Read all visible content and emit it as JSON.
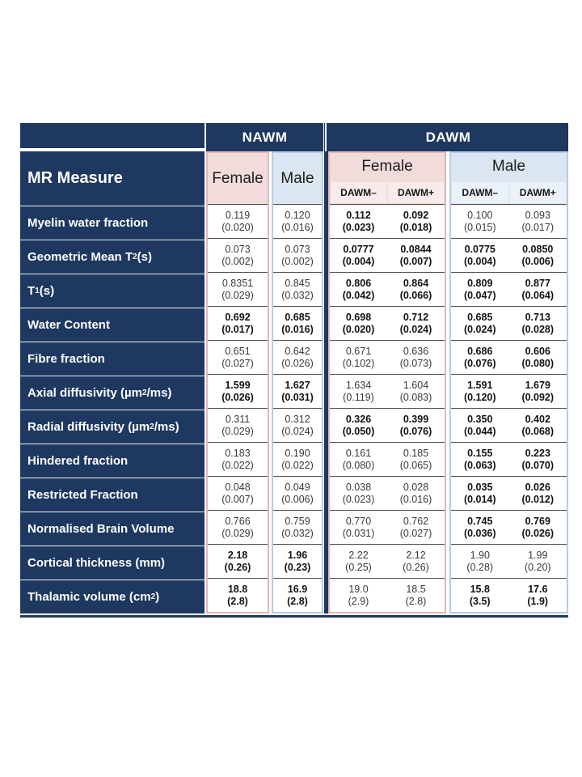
{
  "table": {
    "corner_label": "MR Measure",
    "groups": {
      "nawm": "NAWM",
      "dawm": "DAWM"
    },
    "sex_labels": {
      "female": "Female",
      "male": "Male"
    },
    "subcols": {
      "neg": "DAWM–",
      "pos": "DAWM+"
    },
    "colors": {
      "navy": "#1F3860",
      "female_fill": "#F2DCDB",
      "female_border": "#E3B7B5",
      "female_subfill": "#F8EBEA",
      "male_fill": "#DCE6F2",
      "male_border": "#B7CCE2",
      "male_subfill": "#EAF1F8",
      "row_separator": "#4d4d4d"
    },
    "column_order": [
      "nawm_female",
      "nawm_male",
      "dawm_female_neg",
      "dawm_female_pos",
      "dawm_male_neg",
      "dawm_male_pos"
    ],
    "rows": [
      {
        "label_parts": [
          {
            "t": "Myelin water fraction"
          }
        ],
        "cells": [
          {
            "v": "0.119",
            "sd": "(0.020)",
            "b": false
          },
          {
            "v": "0.120",
            "sd": "(0.016)",
            "b": false
          },
          {
            "v": "0.112",
            "sd": "(0.023)",
            "b": true
          },
          {
            "v": "0.092",
            "sd": "(0.018)",
            "b": true
          },
          {
            "v": "0.100",
            "sd": "(0.015)",
            "b": false
          },
          {
            "v": "0.093",
            "sd": "(0.017)",
            "b": false
          }
        ]
      },
      {
        "label_parts": [
          {
            "t": "Geometric Mean T"
          },
          {
            "sub": "2"
          },
          {
            "t": " (s)"
          }
        ],
        "cells": [
          {
            "v": "0.073",
            "sd": "(0.002)",
            "b": false
          },
          {
            "v": "0.073",
            "sd": "(0.002)",
            "b": false
          },
          {
            "v": "0.0777",
            "sd": "(0.004)",
            "b": true
          },
          {
            "v": "0.0844",
            "sd": "(0.007)",
            "b": true
          },
          {
            "v": "0.0775",
            "sd": "(0.004)",
            "b": true
          },
          {
            "v": "0.0850",
            "sd": "(0.006)",
            "b": true
          }
        ]
      },
      {
        "label_parts": [
          {
            "t": "T"
          },
          {
            "sub": "1"
          },
          {
            "t": " (s)"
          }
        ],
        "cells": [
          {
            "v": "0.8351",
            "sd": "(0.029)",
            "b": false
          },
          {
            "v": "0.845",
            "sd": "(0.032)",
            "b": false
          },
          {
            "v": "0.806",
            "sd": "(0.042)",
            "b": true
          },
          {
            "v": "0.864",
            "sd": "(0.066)",
            "b": true
          },
          {
            "v": "0.809",
            "sd": "(0.047)",
            "b": true
          },
          {
            "v": "0.877",
            "sd": "(0.064)",
            "b": true
          }
        ]
      },
      {
        "label_parts": [
          {
            "t": "Water Content"
          }
        ],
        "cells": [
          {
            "v": "0.692",
            "sd": "(0.017)",
            "b": true
          },
          {
            "v": "0.685",
            "sd": "(0.016)",
            "b": true
          },
          {
            "v": "0.698",
            "sd": "(0.020)",
            "b": true
          },
          {
            "v": "0.712",
            "sd": "(0.024)",
            "b": true
          },
          {
            "v": "0.685",
            "sd": "(0.024)",
            "b": true
          },
          {
            "v": "0.713",
            "sd": "(0.028)",
            "b": true
          }
        ]
      },
      {
        "label_parts": [
          {
            "t": "Fibre fraction"
          }
        ],
        "cells": [
          {
            "v": "0.651",
            "sd": "(0.027)",
            "b": false
          },
          {
            "v": "0.642",
            "sd": "(0.026)",
            "b": false
          },
          {
            "v": "0.671",
            "sd": "(0.102)",
            "b": false
          },
          {
            "v": "0.636",
            "sd": "(0.073)",
            "b": false
          },
          {
            "v": "0.686",
            "sd": "(0.076)",
            "b": true
          },
          {
            "v": "0.606",
            "sd": "(0.080)",
            "b": true
          }
        ]
      },
      {
        "label_parts": [
          {
            "t": "Axial diffusivity (µm"
          },
          {
            "sup": "2"
          },
          {
            "t": "/ms)"
          }
        ],
        "cells": [
          {
            "v": "1.599",
            "sd": "(0.026)",
            "b": true
          },
          {
            "v": "1.627",
            "sd": "(0.031)",
            "b": true
          },
          {
            "v": "1.634",
            "sd": "(0.119)",
            "b": false
          },
          {
            "v": "1.604",
            "sd": "(0.083)",
            "b": false
          },
          {
            "v": "1.591",
            "sd": "(0.120)",
            "b": true
          },
          {
            "v": "1.679",
            "sd": "(0.092)",
            "b": true
          }
        ]
      },
      {
        "label_parts": [
          {
            "t": "Radial diffusivity (µm"
          },
          {
            "sup": "2"
          },
          {
            "t": "/ms)"
          }
        ],
        "cells": [
          {
            "v": "0.311",
            "sd": "(0.029)",
            "b": false
          },
          {
            "v": "0.312",
            "sd": "(0.024)",
            "b": false
          },
          {
            "v": "0.326",
            "sd": "(0.050)",
            "b": true
          },
          {
            "v": "0.399",
            "sd": "(0.076)",
            "b": true
          },
          {
            "v": "0.350",
            "sd": "(0.044)",
            "b": true
          },
          {
            "v": "0.402",
            "sd": "(0.068)",
            "b": true
          }
        ]
      },
      {
        "label_parts": [
          {
            "t": "Hindered fraction"
          }
        ],
        "cells": [
          {
            "v": "0.183",
            "sd": "(0.022)",
            "b": false
          },
          {
            "v": "0.190",
            "sd": "(0.022)",
            "b": false
          },
          {
            "v": "0.161",
            "sd": "(0.080)",
            "b": false
          },
          {
            "v": "0.185",
            "sd": "(0.065)",
            "b": false
          },
          {
            "v": "0.155",
            "sd": "(0.063)",
            "b": true
          },
          {
            "v": "0.223",
            "sd": "(0.070)",
            "b": true
          }
        ]
      },
      {
        "label_parts": [
          {
            "t": "Restricted Fraction"
          }
        ],
        "cells": [
          {
            "v": "0.048",
            "sd": "(0.007)",
            "b": false
          },
          {
            "v": "0.049",
            "sd": "(0.006)",
            "b": false
          },
          {
            "v": "0.038",
            "sd": "(0.023)",
            "b": false
          },
          {
            "v": "0.028",
            "sd": "(0.016)",
            "b": false
          },
          {
            "v": "0.035",
            "sd": "(0.014)",
            "b": true
          },
          {
            "v": "0.026",
            "sd": "(0.012)",
            "b": true
          }
        ]
      },
      {
        "label_parts": [
          {
            "t": "Normalised Brain Volume"
          }
        ],
        "cells": [
          {
            "v": "0.766",
            "sd": "(0.029)",
            "b": false
          },
          {
            "v": "0.759",
            "sd": "(0.032)",
            "b": false
          },
          {
            "v": "0.770",
            "sd": "(0.031)",
            "b": false
          },
          {
            "v": "0.762",
            "sd": "(0.027)",
            "b": false
          },
          {
            "v": "0.745",
            "sd": "(0.036)",
            "b": true
          },
          {
            "v": "0.769",
            "sd": "(0.026)",
            "b": true
          }
        ]
      },
      {
        "label_parts": [
          {
            "t": "Cortical thickness (mm)"
          }
        ],
        "cells": [
          {
            "v": "2.18",
            "sd": "(0.26)",
            "b": true
          },
          {
            "v": "1.96",
            "sd": "(0.23)",
            "b": true
          },
          {
            "v": "2.22",
            "sd": "(0.25)",
            "b": false
          },
          {
            "v": "2.12",
            "sd": "(0.26)",
            "b": false
          },
          {
            "v": "1.90",
            "sd": "(0.28)",
            "b": false
          },
          {
            "v": "1.99",
            "sd": "(0.20)",
            "b": false
          }
        ]
      },
      {
        "label_parts": [
          {
            "t": "Thalamic volume (cm"
          },
          {
            "sup": "2"
          },
          {
            "t": ")"
          }
        ],
        "cells": [
          {
            "v": "18.8",
            "sd": "(2.8)",
            "b": true
          },
          {
            "v": "16.9",
            "sd": "(2.8)",
            "b": true
          },
          {
            "v": "19.0",
            "sd": "(2.9)",
            "b": false
          },
          {
            "v": "18.5",
            "sd": "(2.8)",
            "b": false
          },
          {
            "v": "15.8",
            "sd": "(3.5)",
            "b": true
          },
          {
            "v": "17.6",
            "sd": "(1.9)",
            "b": true
          }
        ]
      }
    ]
  }
}
